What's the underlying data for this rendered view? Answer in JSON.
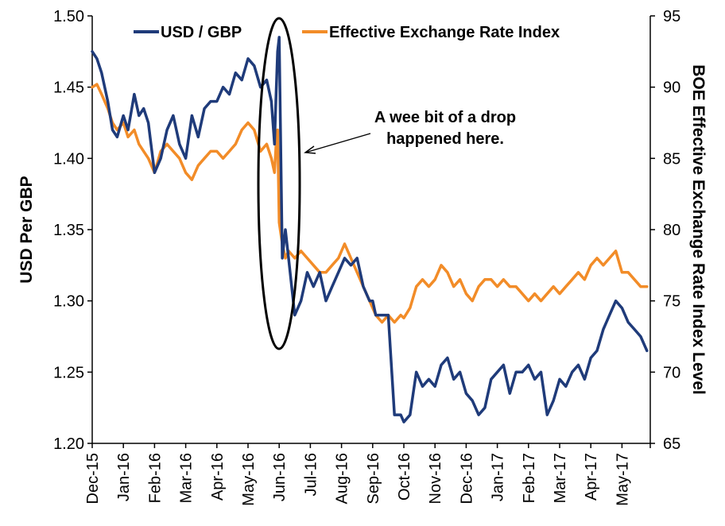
{
  "chart_data": {
    "type": "line",
    "xlabel": "",
    "ylabel": "USD Per GBP",
    "y2label": "BOE Effective Exchange Rate Index Level",
    "ylim": [
      1.2,
      1.5
    ],
    "y2lim": [
      65,
      95
    ],
    "yticks": [
      "1.20",
      "1.25",
      "1.30",
      "1.35",
      "1.40",
      "1.45",
      "1.50"
    ],
    "y2ticks": [
      "65",
      "70",
      "75",
      "80",
      "85",
      "90",
      "95"
    ],
    "categories": [
      "Dec-15",
      "Jan-16",
      "Feb-16",
      "Mar-16",
      "Apr-16",
      "May-16",
      "Jun-16",
      "Jul-16",
      "Aug-16",
      "Sep-16",
      "Oct-16",
      "Nov-16",
      "Dec-16",
      "Jan-17",
      "Feb-17",
      "Mar-17",
      "Apr-17",
      "May-17"
    ],
    "grid": false,
    "legend_position": "top",
    "annotation": "A wee bit of a drop\nhappened here.",
    "series": [
      {
        "name": "USD / GBP",
        "axis": "left",
        "color": "#1f3b7a",
        "x": [
          0,
          0.15,
          0.3,
          0.5,
          0.65,
          0.8,
          1.0,
          1.15,
          1.35,
          1.5,
          1.65,
          1.8,
          2.0,
          2.2,
          2.4,
          2.6,
          2.8,
          3.0,
          3.2,
          3.4,
          3.6,
          3.8,
          4.0,
          4.2,
          4.4,
          4.6,
          4.8,
          5.0,
          5.2,
          5.4,
          5.6,
          5.75,
          5.85,
          5.9,
          5.95,
          6.0,
          6.1,
          6.2,
          6.3,
          6.5,
          6.7,
          6.9,
          7.1,
          7.3,
          7.5,
          7.7,
          7.9,
          8.1,
          8.3,
          8.5,
          8.7,
          8.9,
          9.0,
          9.1,
          9.3,
          9.5,
          9.7,
          9.9,
          10.0,
          10.2,
          10.4,
          10.6,
          10.8,
          11.0,
          11.2,
          11.4,
          11.6,
          11.8,
          12.0,
          12.2,
          12.4,
          12.6,
          12.8,
          13.0,
          13.2,
          13.4,
          13.6,
          13.8,
          14.0,
          14.2,
          14.4,
          14.6,
          14.8,
          15.0,
          15.2,
          15.4,
          15.6,
          15.8,
          16.0,
          16.2,
          16.4,
          16.6,
          16.8,
          17.0,
          17.2,
          17.4,
          17.6,
          17.8
        ],
        "values": [
          1.475,
          1.47,
          1.46,
          1.44,
          1.42,
          1.415,
          1.43,
          1.42,
          1.445,
          1.43,
          1.435,
          1.425,
          1.39,
          1.4,
          1.42,
          1.43,
          1.41,
          1.4,
          1.43,
          1.415,
          1.435,
          1.44,
          1.44,
          1.45,
          1.445,
          1.46,
          1.455,
          1.47,
          1.465,
          1.45,
          1.455,
          1.44,
          1.41,
          1.445,
          1.475,
          1.485,
          1.33,
          1.35,
          1.33,
          1.29,
          1.3,
          1.32,
          1.31,
          1.32,
          1.3,
          1.31,
          1.32,
          1.33,
          1.325,
          1.33,
          1.31,
          1.3,
          1.3,
          1.29,
          1.29,
          1.29,
          1.22,
          1.22,
          1.215,
          1.22,
          1.25,
          1.24,
          1.245,
          1.24,
          1.255,
          1.26,
          1.245,
          1.25,
          1.235,
          1.23,
          1.22,
          1.225,
          1.245,
          1.25,
          1.255,
          1.235,
          1.25,
          1.25,
          1.255,
          1.245,
          1.25,
          1.22,
          1.23,
          1.245,
          1.24,
          1.25,
          1.255,
          1.245,
          1.26,
          1.265,
          1.28,
          1.29,
          1.3,
          1.295,
          1.285,
          1.28,
          1.275,
          1.265
        ]
      },
      {
        "name": "Effective Exchange Rate Index",
        "axis": "right",
        "color": "#f28c28",
        "x": [
          0,
          0.15,
          0.3,
          0.5,
          0.65,
          0.8,
          1.0,
          1.15,
          1.35,
          1.5,
          1.65,
          1.8,
          2.0,
          2.2,
          2.4,
          2.6,
          2.8,
          3.0,
          3.2,
          3.4,
          3.6,
          3.8,
          4.0,
          4.2,
          4.4,
          4.6,
          4.8,
          5.0,
          5.2,
          5.4,
          5.6,
          5.75,
          5.85,
          5.9,
          5.95,
          6.0,
          6.1,
          6.2,
          6.3,
          6.5,
          6.7,
          6.9,
          7.1,
          7.3,
          7.5,
          7.7,
          7.9,
          8.1,
          8.3,
          8.5,
          8.7,
          8.9,
          9.0,
          9.1,
          9.3,
          9.5,
          9.7,
          9.9,
          10.0,
          10.2,
          10.4,
          10.6,
          10.8,
          11.0,
          11.2,
          11.4,
          11.6,
          11.8,
          12.0,
          12.2,
          12.4,
          12.6,
          12.8,
          13.0,
          13.2,
          13.4,
          13.6,
          13.8,
          14.0,
          14.2,
          14.4,
          14.6,
          14.8,
          15.0,
          15.2,
          15.4,
          15.6,
          15.8,
          16.0,
          16.2,
          16.4,
          16.6,
          16.8,
          17.0,
          17.2,
          17.4,
          17.6,
          17.8
        ],
        "values": [
          90.0,
          90.2,
          89.5,
          88.5,
          87.5,
          87.0,
          87.5,
          86.5,
          87.0,
          86.0,
          85.5,
          85.0,
          84.0,
          85.5,
          86.0,
          85.5,
          85.0,
          84.0,
          83.5,
          84.5,
          85.0,
          85.5,
          85.5,
          85.0,
          85.5,
          86.0,
          87.0,
          87.5,
          87.0,
          85.5,
          86.0,
          85.0,
          84.0,
          86.0,
          87.0,
          80.5,
          79.0,
          78.0,
          78.5,
          78.0,
          78.5,
          78.0,
          77.5,
          77.0,
          77.0,
          77.5,
          78.0,
          79.0,
          78.0,
          77.0,
          76.0,
          75.0,
          74.5,
          74.0,
          73.5,
          74.0,
          73.5,
          74.0,
          73.8,
          74.5,
          76.0,
          76.5,
          76.0,
          76.5,
          77.5,
          77.0,
          76.0,
          76.5,
          75.5,
          75.0,
          76.0,
          76.5,
          76.5,
          76.0,
          76.5,
          76.0,
          76.0,
          75.5,
          75.0,
          75.5,
          75.0,
          75.5,
          76.0,
          75.5,
          76.0,
          76.5,
          77.0,
          76.5,
          77.5,
          78.0,
          77.5,
          78.0,
          78.5,
          77.0,
          77.0,
          76.5,
          76.0,
          76.0
        ]
      }
    ]
  }
}
